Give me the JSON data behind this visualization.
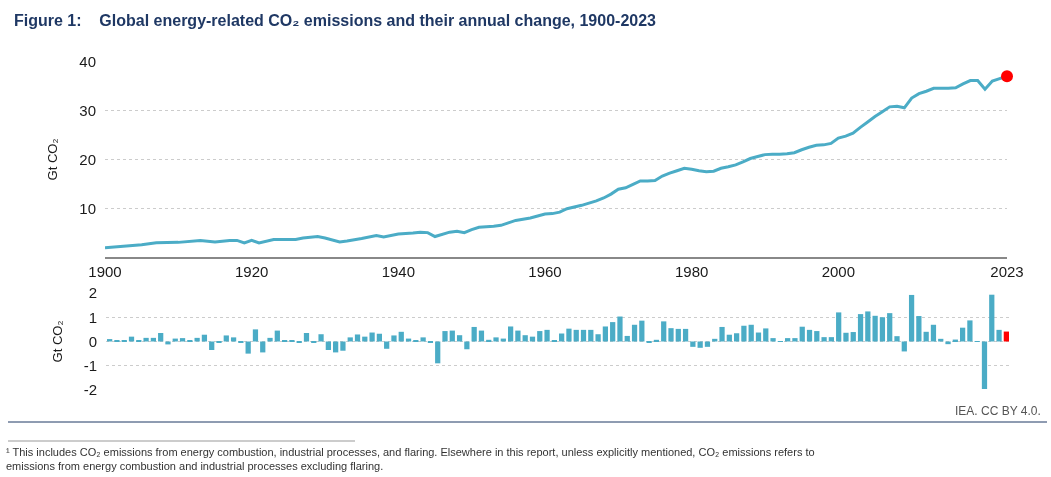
{
  "chart_data": [
    {
      "type": "line",
      "title": "Figure 1:    Global energy-related CO₂ emissions and their annual change, 1900-2023",
      "ylabel": "Gt CO₂",
      "xlim": [
        1900,
        2023
      ],
      "xticks": [
        1900,
        1920,
        1940,
        1960,
        1980,
        2000,
        2023
      ],
      "ylim": [
        0,
        40
      ],
      "yticks": [
        10,
        20,
        30,
        40
      ],
      "grid": "y",
      "marker": "none",
      "line_style": "solid",
      "series": [
        {
          "color": "#4bacc6",
          "x": [
            1900,
            1905,
            1907,
            1910,
            1913,
            1915,
            1917,
            1918,
            1919,
            1920,
            1921,
            1923,
            1926,
            1927,
            1929,
            1930,
            1932,
            1933,
            1935,
            1937,
            1938,
            1940,
            1942,
            1943,
            1944,
            1945,
            1947,
            1948,
            1949,
            1950,
            1951,
            1953,
            1954,
            1955,
            1956,
            1958,
            1959,
            1960,
            1961,
            1962,
            1963,
            1965,
            1967,
            1968,
            1969,
            1970,
            1971,
            1972,
            1973,
            1974,
            1975,
            1976,
            1977,
            1978,
            1979,
            1980,
            1981,
            1982,
            1983,
            1984,
            1985,
            1986,
            1987,
            1988,
            1989,
            1990,
            1991,
            1992,
            1993,
            1994,
            1995,
            1996,
            1997,
            1998,
            1999,
            2000,
            2001,
            2002,
            2003,
            2004,
            2005,
            2006,
            2007,
            2008,
            2009,
            2010,
            2011,
            2012,
            2013,
            2014,
            2015,
            2016,
            2017,
            2018,
            2019,
            2020,
            2021,
            2022,
            2023
          ],
          "values": [
            1.9,
            2.5,
            2.9,
            3.0,
            3.4,
            3.1,
            3.4,
            3.4,
            2.9,
            3.4,
            2.9,
            3.6,
            3.6,
            3.9,
            4.2,
            3.9,
            3.1,
            3.3,
            3.8,
            4.4,
            4.1,
            4.7,
            4.9,
            5.1,
            5.0,
            4.2,
            5.1,
            5.3,
            5.0,
            5.6,
            6.1,
            6.3,
            6.5,
            7.0,
            7.5,
            8.0,
            8.4,
            8.8,
            8.9,
            9.2,
            9.9,
            10.6,
            11.5,
            12.1,
            12.9,
            13.9,
            14.2,
            14.9,
            15.6,
            15.6,
            15.7,
            16.6,
            17.2,
            17.7,
            18.2,
            18.0,
            17.7,
            17.5,
            17.6,
            18.2,
            18.5,
            18.9,
            19.5,
            20.2,
            20.6,
            21.0,
            21.1,
            21.1,
            21.2,
            21.4,
            22.0,
            22.5,
            22.9,
            23.0,
            23.3,
            24.4,
            24.8,
            25.4,
            26.6,
            27.7,
            28.8,
            29.8,
            30.8,
            30.9,
            30.6,
            32.6,
            33.5,
            34.0,
            34.6,
            34.6,
            34.6,
            34.7,
            35.5,
            36.2,
            36.2,
            34.4,
            36.1,
            36.6,
            37.1
          ]
        },
        {
          "type": "scatter",
          "marker": "circle",
          "color": "#ff0000",
          "x": [
            2023
          ],
          "values": [
            37.1
          ]
        }
      ]
    },
    {
      "type": "bar",
      "ylabel": "Gt CO₂",
      "ylim": [
        -2,
        2
      ],
      "yticks": [
        -2,
        -1,
        0,
        1,
        2
      ],
      "grid": "y",
      "tick_labels": "y",
      "categories": [
        null,
        null,
        null,
        null,
        null,
        null,
        null,
        null,
        null,
        null,
        null,
        null,
        null,
        null,
        null,
        null,
        null,
        null,
        null,
        null,
        null,
        null,
        null,
        null,
        null,
        null,
        null,
        null,
        null,
        null,
        null,
        null,
        null,
        null,
        null,
        null,
        null,
        null,
        null,
        null,
        null,
        null,
        null,
        null,
        null,
        null,
        null,
        null,
        null,
        null,
        null,
        null,
        null,
        null,
        null,
        null,
        null,
        null,
        null,
        null,
        null,
        null,
        null,
        null,
        null,
        null,
        null,
        null,
        null,
        null,
        null,
        null,
        null,
        null,
        null,
        null,
        null,
        null,
        null,
        null,
        null,
        null,
        null,
        null,
        null,
        null,
        null,
        null,
        null,
        null,
        null,
        null,
        null,
        null,
        null,
        null,
        null,
        null,
        null,
        null,
        null,
        null,
        null,
        null,
        null,
        null,
        null,
        null,
        null,
        null,
        null,
        null,
        null,
        null,
        null,
        null,
        null,
        null,
        null,
        null,
        null,
        null,
        null,
        null
      ],
      "values": [
        0.1,
        0.05,
        0.05,
        0.2,
        0.03,
        0.15,
        0.15,
        0.35,
        -0.12,
        0.12,
        0.14,
        0.05,
        0.15,
        0.28,
        -0.35,
        -0.05,
        0.25,
        0.17,
        -0.05,
        -0.5,
        0.5,
        -0.45,
        0.15,
        0.45,
        0.03,
        0.03,
        -0.05,
        0.35,
        -0.03,
        0.3,
        -0.35,
        -0.45,
        -0.38,
        0.17,
        0.29,
        0.2,
        0.37,
        0.32,
        -0.3,
        0.25,
        0.4,
        0.12,
        0.05,
        0.17,
        -0.03,
        -0.9,
        0.43,
        0.45,
        0.26,
        -0.32,
        0.6,
        0.45,
        0.07,
        0.17,
        0.12,
        0.62,
        0.45,
        0.26,
        0.2,
        0.43,
        0.48,
        0.04,
        0.33,
        0.53,
        0.48,
        0.48,
        0.48,
        0.3,
        0.62,
        0.8,
        1.03,
        0.23,
        0.69,
        0.86,
        -0.03,
        0.07,
        0.83,
        0.55,
        0.52,
        0.52,
        -0.22,
        -0.26,
        -0.22,
        0.11,
        0.6,
        0.28,
        0.34,
        0.65,
        0.69,
        0.37,
        0.54,
        0.14,
        0.02,
        0.14,
        0.14,
        0.61,
        0.48,
        0.43,
        0.18,
        0.18,
        1.2,
        0.36,
        0.39,
        1.13,
        1.24,
        1.06,
        1.0,
        1.17,
        0.22,
        -0.41,
        1.92,
        1.05,
        0.4,
        0.69,
        0.11,
        -0.11,
        0.08,
        0.57,
        0.87,
        0.02,
        -1.96,
        1.93,
        0.48,
        0.41
      ],
      "colors": [
        "#4bacc6",
        "#4bacc6",
        "#4bacc6",
        "#4bacc6",
        "#4bacc6",
        "#4bacc6",
        "#4bacc6",
        "#4bacc6",
        "#4bacc6",
        "#4bacc6",
        "#4bacc6",
        "#4bacc6",
        "#4bacc6",
        "#4bacc6",
        "#4bacc6",
        "#4bacc6",
        "#4bacc6",
        "#4bacc6",
        "#4bacc6",
        "#4bacc6",
        "#4bacc6",
        "#4bacc6",
        "#4bacc6",
        "#4bacc6",
        "#4bacc6",
        "#4bacc6",
        "#4bacc6",
        "#4bacc6",
        "#4bacc6",
        "#4bacc6",
        "#4bacc6",
        "#4bacc6",
        "#4bacc6",
        "#4bacc6",
        "#4bacc6",
        "#4bacc6",
        "#4bacc6",
        "#4bacc6",
        "#4bacc6",
        "#4bacc6",
        "#4bacc6",
        "#4bacc6",
        "#4bacc6",
        "#4bacc6",
        "#4bacc6",
        "#4bacc6",
        "#4bacc6",
        "#4bacc6",
        "#4bacc6",
        "#4bacc6",
        "#4bacc6",
        "#4bacc6",
        "#4bacc6",
        "#4bacc6",
        "#4bacc6",
        "#4bacc6",
        "#4bacc6",
        "#4bacc6",
        "#4bacc6",
        "#4bacc6",
        "#4bacc6",
        "#4bacc6",
        "#4bacc6",
        "#4bacc6",
        "#4bacc6",
        "#4bacc6",
        "#4bacc6",
        "#4bacc6",
        "#4bacc6",
        "#4bacc6",
        "#4bacc6",
        "#4bacc6",
        "#4bacc6",
        "#4bacc6",
        "#4bacc6",
        "#4bacc6",
        "#4bacc6",
        "#4bacc6",
        "#4bacc6",
        "#4bacc6",
        "#4bacc6",
        "#4bacc6",
        "#4bacc6",
        "#4bacc6",
        "#4bacc6",
        "#4bacc6",
        "#4bacc6",
        "#4bacc6",
        "#4bacc6",
        "#4bacc6",
        "#4bacc6",
        "#4bacc6",
        "#4bacc6",
        "#4bacc6",
        "#4bacc6",
        "#4bacc6",
        "#4bacc6",
        "#4bacc6",
        "#4bacc6",
        "#4bacc6",
        "#4bacc6",
        "#4bacc6",
        "#4bacc6",
        "#4bacc6",
        "#4bacc6",
        "#4bacc6",
        "#4bacc6",
        "#4bacc6",
        "#4bacc6",
        "#4bacc6",
        "#4bacc6",
        "#4bacc6",
        "#4bacc6",
        "#4bacc6",
        "#4bacc6",
        "#4bacc6",
        "#4bacc6",
        "#4bacc6",
        "#4bacc6",
        "#4bacc6",
        "#4bacc6",
        "#4bacc6",
        "#4bacc6",
        "#ff0000"
      ],
      "annotations": [
        "IEA. CC BY 4.0.",
        "¹ This includes CO₂ emissions from energy combustion, industrial processes, and flaring. Elsewhere in this report, unless explicitly mentioned, CO₂ emissions refers to emissions from energy combustion and industrial processes excluding flaring."
      ]
    }
  ]
}
